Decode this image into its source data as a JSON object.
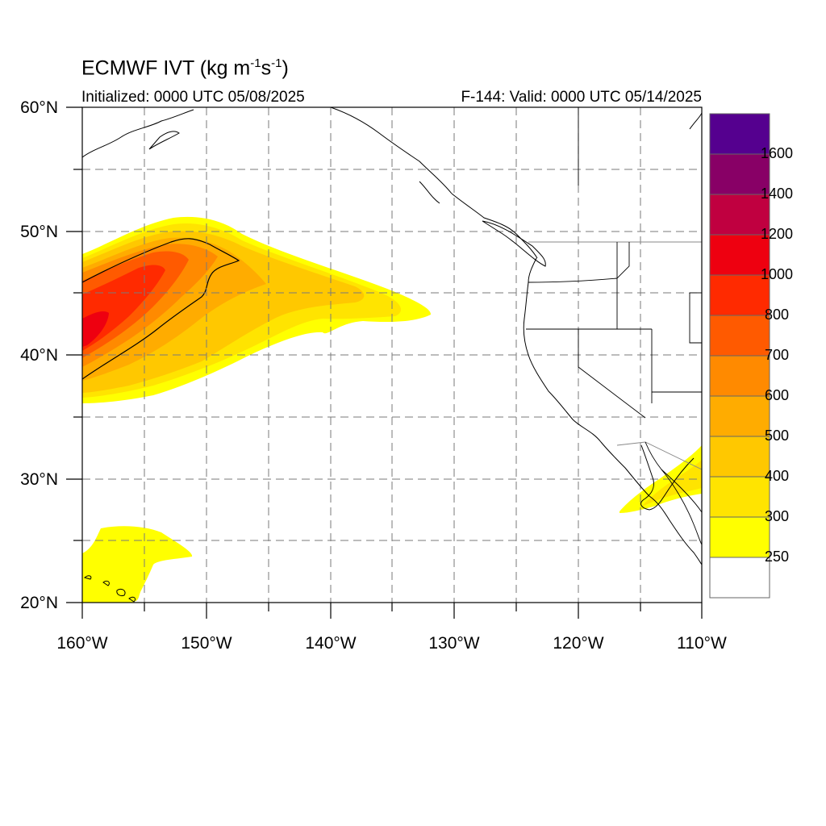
{
  "header": {
    "title_main": "ECMWF IVT (kg m",
    "title_exp1": "-1",
    "title_mid": "s",
    "title_exp2": "-1",
    "title_end": ")",
    "initialized": "Initialized: 0000 UTC 05/08/2025",
    "valid": "F-144: Valid: 0000 UTC 05/14/2025"
  },
  "map": {
    "lon_range": [
      -160,
      -110
    ],
    "lat_range": [
      20,
      60
    ],
    "lon_labels": [
      "160°W",
      "150°W",
      "140°W",
      "130°W",
      "120°W",
      "110°W"
    ],
    "lat_labels": [
      "20°N",
      "30°N",
      "40°N",
      "50°N",
      "60°N"
    ],
    "gridlines": "dashed every 5°"
  },
  "colorbar": {
    "levels": [
      "250",
      "300",
      "400",
      "500",
      "600",
      "700",
      "800",
      "1000",
      "1200",
      "1400",
      "1600"
    ],
    "colors": [
      "#ffffff",
      "#ffff00",
      "#ffe400",
      "#ffc800",
      "#ffac00",
      "#ff8a00",
      "#ff5a00",
      "#ff2a00",
      "#ee0010",
      "#c00040",
      "#880066",
      "#55008f"
    ]
  }
}
